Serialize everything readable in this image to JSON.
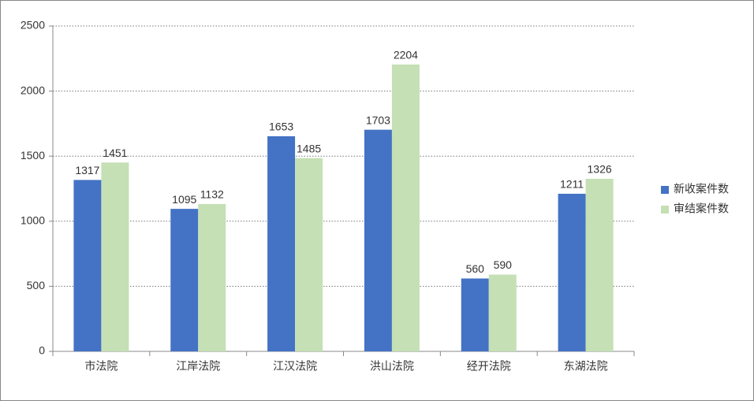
{
  "chart_data": {
    "type": "bar",
    "categories": [
      "市法院",
      "江岸法院",
      "江汉法院",
      "洪山法院",
      "经开法院",
      "东湖法院"
    ],
    "series": [
      {
        "name": "新收案件数",
        "color": "#4472c4",
        "values": [
          1317,
          1095,
          1653,
          1703,
          560,
          1211
        ]
      },
      {
        "name": "审结案件数",
        "color": "#c5e0b4",
        "values": [
          1451,
          1132,
          1485,
          2204,
          590,
          1326
        ]
      }
    ],
    "ylim": [
      0,
      2500
    ],
    "yticks": [
      0,
      500,
      1000,
      1500,
      2000,
      2500
    ],
    "grid": true,
    "legend": "right"
  }
}
